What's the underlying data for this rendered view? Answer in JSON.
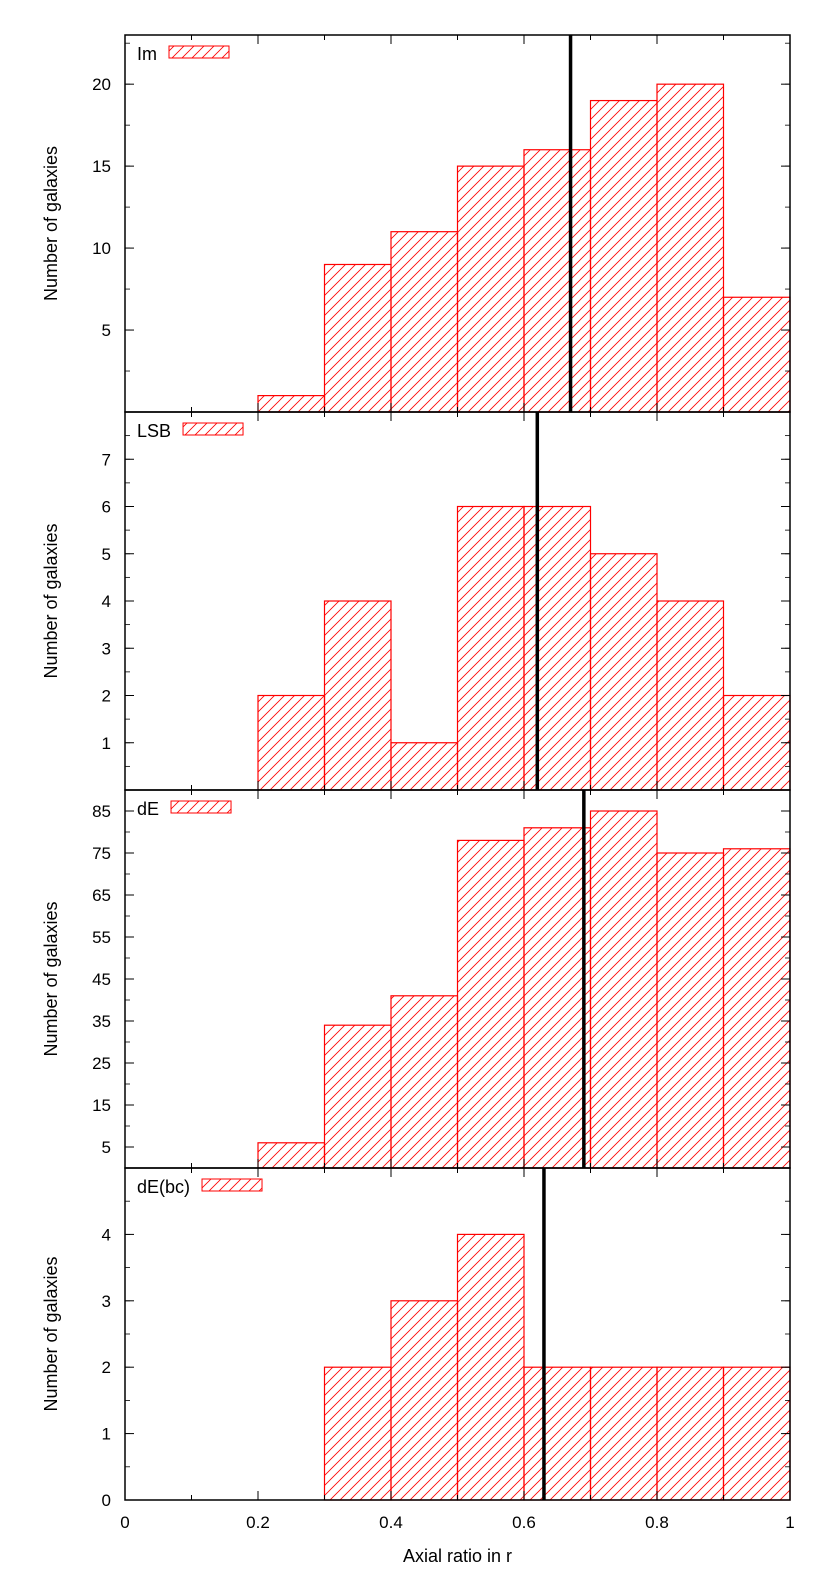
{
  "chart_data": [
    {
      "type": "bar",
      "legend": "Im",
      "ylabel": "Number of galaxies",
      "xlim": [
        0,
        1
      ],
      "ylim": [
        0,
        23
      ],
      "yticks": [
        5,
        10,
        15,
        20
      ],
      "bins": [
        [
          0.2,
          0.3
        ],
        [
          0.3,
          0.4
        ],
        [
          0.4,
          0.5
        ],
        [
          0.5,
          0.6
        ],
        [
          0.6,
          0.7
        ],
        [
          0.7,
          0.8
        ],
        [
          0.8,
          0.9
        ],
        [
          0.9,
          1.0
        ]
      ],
      "values": [
        1,
        9,
        11,
        15,
        16,
        19,
        20,
        7
      ],
      "marker": 0.67,
      "color": "#ff0000"
    },
    {
      "type": "bar",
      "legend": "LSB",
      "ylabel": "Number of galaxies",
      "xlim": [
        0,
        1
      ],
      "ylim": [
        0,
        8
      ],
      "yticks": [
        1,
        2,
        3,
        4,
        5,
        6,
        7
      ],
      "bins": [
        [
          0.2,
          0.3
        ],
        [
          0.3,
          0.4
        ],
        [
          0.4,
          0.5
        ],
        [
          0.5,
          0.6
        ],
        [
          0.6,
          0.7
        ],
        [
          0.7,
          0.8
        ],
        [
          0.8,
          0.9
        ],
        [
          0.9,
          1.0
        ]
      ],
      "values": [
        2,
        4,
        1,
        6,
        6,
        5,
        4,
        2
      ],
      "marker": 0.62,
      "color": "#ff0000"
    },
    {
      "type": "bar",
      "legend": "dE",
      "ylabel": "Number of galaxies",
      "xlim": [
        0,
        1
      ],
      "ylim": [
        0,
        90
      ],
      "yticks": [
        5,
        15,
        25,
        35,
        45,
        55,
        65,
        75,
        85
      ],
      "bins": [
        [
          0.2,
          0.3
        ],
        [
          0.3,
          0.4
        ],
        [
          0.4,
          0.5
        ],
        [
          0.5,
          0.6
        ],
        [
          0.6,
          0.7
        ],
        [
          0.7,
          0.8
        ],
        [
          0.8,
          0.9
        ],
        [
          0.9,
          1.0
        ]
      ],
      "values": [
        6,
        34,
        41,
        78,
        81,
        85,
        75,
        76
      ],
      "marker": 0.69,
      "color": "#ff0000"
    },
    {
      "type": "bar",
      "legend": "dE(bc)",
      "ylabel": "Number of galaxies",
      "xlabel": "Axial ratio in r",
      "xlim": [
        0,
        1
      ],
      "ylim": [
        0,
        5
      ],
      "yticks": [
        0,
        1,
        2,
        3,
        4
      ],
      "xticks": [
        "0",
        "0.2",
        "0.4",
        "0.6",
        "0.8",
        "1"
      ],
      "bins": [
        [
          0.3,
          0.4
        ],
        [
          0.4,
          0.5
        ],
        [
          0.5,
          0.6
        ],
        [
          0.6,
          0.7
        ],
        [
          0.7,
          0.8
        ],
        [
          0.8,
          0.9
        ],
        [
          0.9,
          1.0
        ]
      ],
      "values": [
        2,
        3,
        4,
        2,
        2,
        2,
        2
      ],
      "marker": 0.63,
      "color": "#ff0000"
    }
  ]
}
